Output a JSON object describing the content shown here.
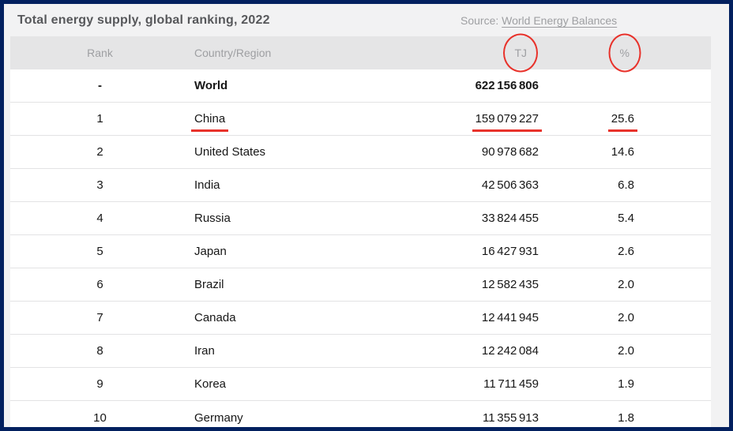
{
  "header": {
    "title": "Total energy supply, global ranking, 2022",
    "source_label": "Source:",
    "source_link": "World Energy Balances"
  },
  "table": {
    "columns": [
      {
        "key": "rank",
        "label": "Rank",
        "circled": false
      },
      {
        "key": "country",
        "label": "Country/Region",
        "circled": false
      },
      {
        "key": "tj",
        "label": "TJ",
        "circled": true
      },
      {
        "key": "pct",
        "label": "%",
        "circled": true
      }
    ],
    "rows": [
      {
        "rank": "-",
        "country": "World",
        "tj": "622 156 806",
        "pct": "",
        "bold": true,
        "underline": []
      },
      {
        "rank": "1",
        "country": "China",
        "tj": "159 079 227",
        "pct": "25.6",
        "bold": false,
        "underline": [
          "country",
          "tj",
          "pct"
        ]
      },
      {
        "rank": "2",
        "country": "United States",
        "tj": "90 978 682",
        "pct": "14.6",
        "bold": false,
        "underline": []
      },
      {
        "rank": "3",
        "country": "India",
        "tj": "42 506 363",
        "pct": "6.8",
        "bold": false,
        "underline": []
      },
      {
        "rank": "4",
        "country": "Russia",
        "tj": "33 824 455",
        "pct": "5.4",
        "bold": false,
        "underline": []
      },
      {
        "rank": "5",
        "country": "Japan",
        "tj": "16 427 931",
        "pct": "2.6",
        "bold": false,
        "underline": []
      },
      {
        "rank": "6",
        "country": "Brazil",
        "tj": "12 582 435",
        "pct": "2.0",
        "bold": false,
        "underline": []
      },
      {
        "rank": "7",
        "country": "Canada",
        "tj": "12 441 945",
        "pct": "2.0",
        "bold": false,
        "underline": []
      },
      {
        "rank": "8",
        "country": "Iran",
        "tj": "12 242 084",
        "pct": "2.0",
        "bold": false,
        "underline": []
      },
      {
        "rank": "9",
        "country": "Korea",
        "tj": "11 711 459",
        "pct": "1.9",
        "bold": false,
        "underline": []
      },
      {
        "rank": "10",
        "country": "Germany",
        "tj": "11 355 913",
        "pct": "1.8",
        "bold": false,
        "underline": []
      }
    ]
  },
  "annotations": {
    "highlight_color": "#e8322b",
    "circled_headers": [
      "TJ",
      "%"
    ],
    "underlined_cells": [
      "China",
      "159 079 227",
      "25.6"
    ]
  },
  "colors": {
    "frame_border": "#02205f",
    "page_background": "#f2f2f3",
    "header_row_background": "#e5e5e6",
    "muted_text": "#9e9fa2",
    "body_text": "#161616"
  }
}
